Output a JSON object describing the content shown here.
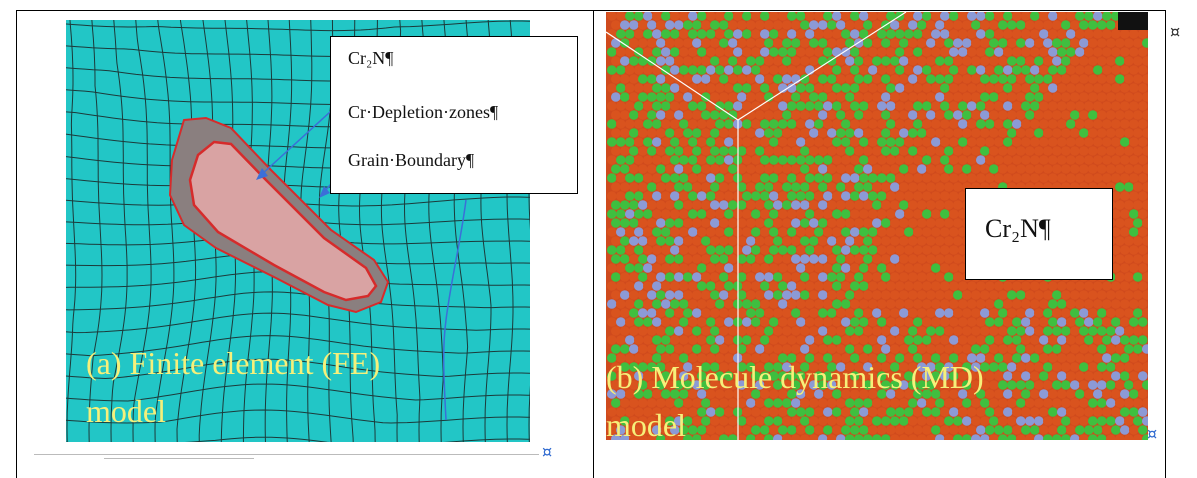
{
  "panel_a": {
    "legend": {
      "item_1": "Cr₂N¶",
      "item_2": "Cr·Depletion·zones¶",
      "item_3": "Grain·Boundary¶"
    },
    "caption_line_1": "(a) Finite element (FE)",
    "caption_line_2": "model",
    "colors": {
      "mesh_fill": "#22c6c6",
      "precipitate_fill": "#d9a3a3",
      "depletion_zone": "#8a7f7f",
      "outline": "#d62b2b"
    }
  },
  "panel_b": {
    "label": "Cr₂N¶",
    "caption_line_1": "(b) Molecule dynamics (MD)",
    "caption_line_2": "model",
    "colors": {
      "atom_orange": "#d9531e",
      "atom_green": "#3fbf3f",
      "atom_blue": "#8c9ad6"
    }
  },
  "end_of_cell_mark": "¤"
}
